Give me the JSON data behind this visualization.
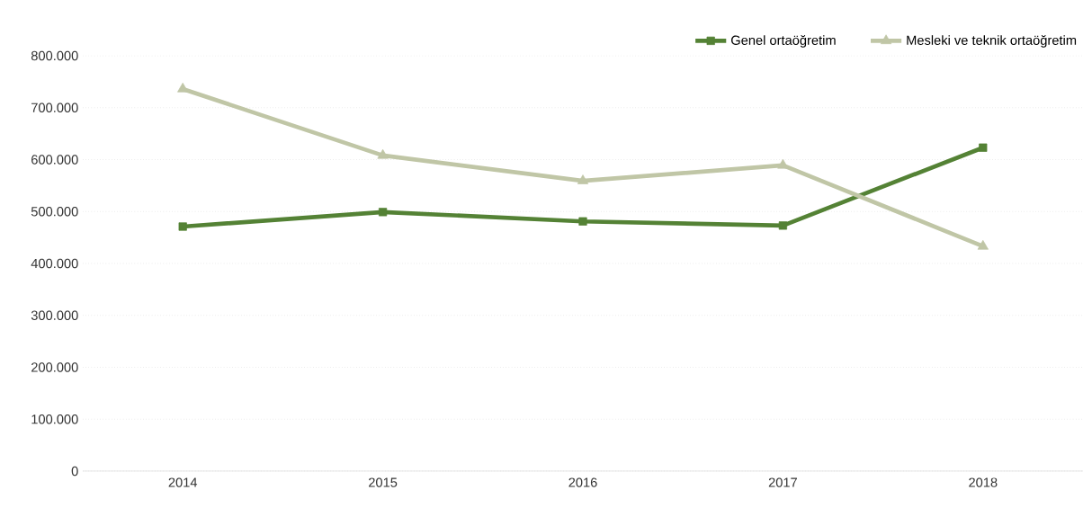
{
  "chart_data": {
    "type": "line",
    "categories": [
      "2014",
      "2015",
      "2016",
      "2017",
      "2018"
    ],
    "series": [
      {
        "name": "Genel ortaöğretim",
        "color": "#548235",
        "marker": "square",
        "values": [
          471000,
          499000,
          481000,
          473000,
          623000
        ]
      },
      {
        "name": "Mesleki ve teknik ortaöğretim",
        "color": "#c0c6a6",
        "marker": "triangle",
        "values": [
          736000,
          608000,
          559000,
          589000,
          433000
        ]
      }
    ],
    "ylim": [
      0,
      800000
    ],
    "yticks": [
      {
        "value": 0,
        "label": "0"
      },
      {
        "value": 100000,
        "label": "100.000"
      },
      {
        "value": 200000,
        "label": "200.000"
      },
      {
        "value": 300000,
        "label": "300.000"
      },
      {
        "value": 400000,
        "label": "400.000"
      },
      {
        "value": 500000,
        "label": "500.000"
      },
      {
        "value": 600000,
        "label": "600.000"
      },
      {
        "value": 700000,
        "label": "700.000"
      },
      {
        "value": 800000,
        "label": "800.000"
      }
    ],
    "grid": "y",
    "legend": "top right",
    "line_style": "solid"
  }
}
